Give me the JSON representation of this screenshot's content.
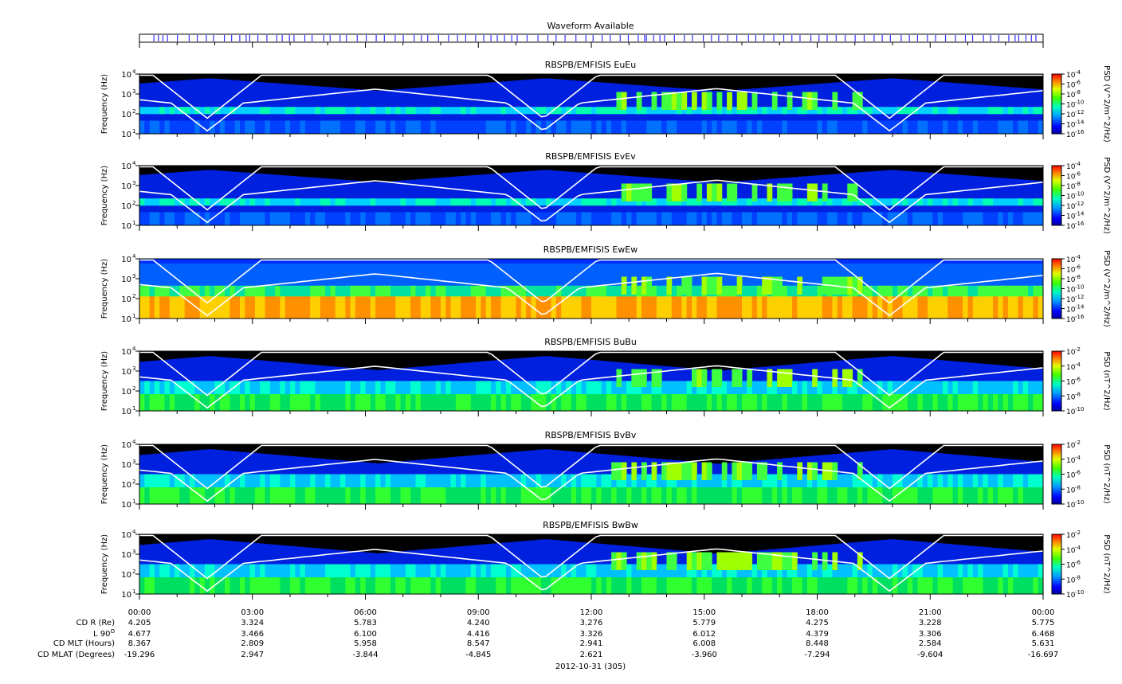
{
  "waveform": {
    "title": "Waveform Available",
    "marks": [
      0.016,
      0.021,
      0.026,
      0.031,
      0.042,
      0.055,
      0.064,
      0.074,
      0.082,
      0.094,
      0.102,
      0.111,
      0.118,
      0.122,
      0.131,
      0.141,
      0.152,
      0.158,
      0.166,
      0.171,
      0.183,
      0.191,
      0.204,
      0.211,
      0.222,
      0.229,
      0.241,
      0.251,
      0.262,
      0.271,
      0.283,
      0.292,
      0.304,
      0.312,
      0.319,
      0.331,
      0.342,
      0.352,
      0.361,
      0.372,
      0.381,
      0.389,
      0.396,
      0.404,
      0.412,
      0.418,
      0.429,
      0.441,
      0.452,
      0.461,
      0.471,
      0.483,
      0.494,
      0.502,
      0.512,
      0.521,
      0.532,
      0.541,
      0.552,
      0.561,
      0.569,
      0.559,
      0.576,
      0.581,
      0.592,
      0.603,
      0.612,
      0.624,
      0.633,
      0.641,
      0.651,
      0.661,
      0.674,
      0.682,
      0.691,
      0.702,
      0.713,
      0.722,
      0.731,
      0.743,
      0.752,
      0.761,
      0.771,
      0.781,
      0.792,
      0.802,
      0.813,
      0.822,
      0.831,
      0.843,
      0.852,
      0.861,
      0.872,
      0.881,
      0.892,
      0.903,
      0.914,
      0.922,
      0.934,
      0.942,
      0.951,
      0.962,
      0.969,
      0.973,
      0.981,
      0.987,
      0.992
    ]
  },
  "chart_data": [
    {
      "type": "heatmap",
      "title": "RBSPB/EMFISIS  EuEu",
      "ylabel": "Frequency (Hz)",
      "yticks": [
        "10",
        "10",
        "10",
        "10"
      ],
      "ytick_exp": [
        "1",
        "2",
        "3",
        "4"
      ],
      "ylim": [
        10,
        10000
      ],
      "yscale": "log",
      "colorbar_label": "PSD (V^2/m^2/Hz)",
      "colorbar_ticks": [
        "10",
        "10",
        "10",
        "10",
        "10",
        "10",
        "10"
      ],
      "colorbar_exp": [
        "-4",
        "-6",
        "-8",
        "-10",
        "-12",
        "-14",
        "-16"
      ],
      "clim": [
        1e-16,
        0.0001
      ],
      "variant": "E"
    },
    {
      "type": "heatmap",
      "title": "RBSPB/EMFISIS  EvEv",
      "ylabel": "Frequency (Hz)",
      "yticks": [
        "10",
        "10",
        "10",
        "10"
      ],
      "ytick_exp": [
        "1",
        "2",
        "3",
        "4"
      ],
      "ylim": [
        10,
        10000
      ],
      "yscale": "log",
      "colorbar_label": "PSD (V^2/m^2/Hz)",
      "colorbar_ticks": [
        "10",
        "10",
        "10",
        "10",
        "10",
        "10",
        "10"
      ],
      "colorbar_exp": [
        "-4",
        "-6",
        "-8",
        "-10",
        "-12",
        "-14",
        "-16"
      ],
      "clim": [
        1e-16,
        0.0001
      ],
      "variant": "E"
    },
    {
      "type": "heatmap",
      "title": "RBSPB/EMFISIS  EwEw",
      "ylabel": "Frequency (Hz)",
      "yticks": [
        "10",
        "10",
        "10",
        "10"
      ],
      "ytick_exp": [
        "1",
        "2",
        "3",
        "4"
      ],
      "ylim": [
        10,
        10000
      ],
      "yscale": "log",
      "colorbar_label": "PSD (V^2/m^2/Hz)",
      "colorbar_ticks": [
        "10",
        "10",
        "10",
        "10",
        "10",
        "10",
        "10"
      ],
      "colorbar_exp": [
        "-4",
        "-6",
        "-8",
        "-10",
        "-12",
        "-14",
        "-16"
      ],
      "clim": [
        1e-16,
        0.0001
      ],
      "variant": "Ew"
    },
    {
      "type": "heatmap",
      "title": "RBSPB/EMFISIS  BuBu",
      "ylabel": "Frequency (Hz)",
      "yticks": [
        "10",
        "10",
        "10",
        "10"
      ],
      "ytick_exp": [
        "1",
        "2",
        "3",
        "4"
      ],
      "ylim": [
        10,
        10000
      ],
      "yscale": "log",
      "colorbar_label": "PSD (nT^2/Hz)",
      "colorbar_ticks": [
        "10",
        "10",
        "10",
        "10",
        "10"
      ],
      "colorbar_exp": [
        "-2",
        "-4",
        "-6",
        "-8",
        "-10"
      ],
      "clim": [
        1e-10,
        0.01
      ],
      "variant": "B"
    },
    {
      "type": "heatmap",
      "title": "RBSPB/EMFISIS  BvBv",
      "ylabel": "Frequency (Hz)",
      "yticks": [
        "10",
        "10",
        "10",
        "10"
      ],
      "ytick_exp": [
        "1",
        "2",
        "3",
        "4"
      ],
      "ylim": [
        10,
        10000
      ],
      "yscale": "log",
      "colorbar_label": "PSD (nT^2/Hz)",
      "colorbar_ticks": [
        "10",
        "10",
        "10",
        "10",
        "10"
      ],
      "colorbar_exp": [
        "-2",
        "-4",
        "-6",
        "-8",
        "-10"
      ],
      "clim": [
        1e-10,
        0.01
      ],
      "variant": "B"
    },
    {
      "type": "heatmap",
      "title": "RBSPB/EMFISIS  BwBw",
      "ylabel": "Frequency (Hz)",
      "yticks": [
        "10",
        "10",
        "10",
        "10"
      ],
      "ytick_exp": [
        "1",
        "2",
        "3",
        "4"
      ],
      "ylim": [
        10,
        10000
      ],
      "yscale": "log",
      "colorbar_label": "PSD (nT^2/Hz)",
      "colorbar_ticks": [
        "10",
        "10",
        "10",
        "10",
        "10"
      ],
      "colorbar_exp": [
        "-2",
        "-4",
        "-6",
        "-8",
        "-10"
      ],
      "clim": [
        1e-10,
        0.01
      ],
      "variant": "B"
    }
  ],
  "xaxis": {
    "time_ticks": [
      "00:00",
      "03:00",
      "06:00",
      "09:00",
      "12:00",
      "15:00",
      "18:00",
      "21:00",
      "00:00"
    ],
    "date_label": "2012-10-31 (305)",
    "ephemeris_labels": [
      "CD R (Re)",
      "L 90",
      "CD MLT (Hours)",
      "CD MLAT (Degrees)"
    ],
    "l_superscript": "O",
    "ephemeris": [
      [
        "4.205",
        "3.324",
        "5.783",
        "4.240",
        "3.276",
        "5.779",
        "4.275",
        "3.228",
        "5.775"
      ],
      [
        "4.677",
        "3.466",
        "6.100",
        "4.416",
        "3.326",
        "6.012",
        "4.379",
        "3.306",
        "6.468"
      ],
      [
        "8.367",
        "2.809",
        "5.958",
        "8.547",
        "2.941",
        "6.008",
        "8.448",
        "2.584",
        "5.631"
      ],
      [
        "-19.296",
        "2.947",
        "-3.844",
        "-4.845",
        "2.621",
        "-3.960",
        "-7.294",
        "-9.604",
        "-16.697"
      ]
    ]
  }
}
